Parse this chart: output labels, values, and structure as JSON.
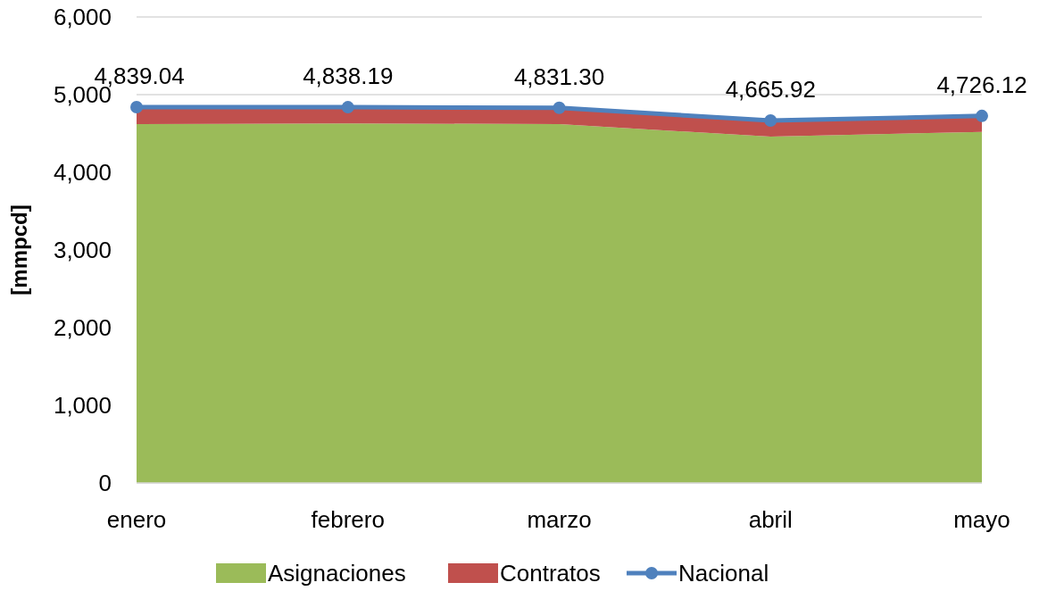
{
  "chart_data": {
    "type": "area",
    "ylabel": "[mmpcd]",
    "categories": [
      "enero",
      "febrero",
      "marzo",
      "abril",
      "mayo"
    ],
    "stacked": true,
    "ylim": [
      0,
      6000
    ],
    "yticks": [
      {
        "value": 0,
        "label": "0"
      },
      {
        "value": 1000,
        "label": "1,000"
      },
      {
        "value": 2000,
        "label": "2,000"
      },
      {
        "value": 3000,
        "label": "3,000"
      },
      {
        "value": 4000,
        "label": "4,000"
      },
      {
        "value": 5000,
        "label": "5,000"
      },
      {
        "value": 6000,
        "label": "6,000"
      }
    ],
    "grid": "y",
    "legend": "bottom",
    "series": [
      {
        "name": "Asignaciones",
        "color": "#9bbb59",
        "values": [
          4620,
          4630,
          4620,
          4460,
          4520
        ]
      },
      {
        "name": "Contratos",
        "color": "#c0504d",
        "values": [
          220,
          210,
          210,
          210,
          210
        ]
      },
      {
        "name": "Nacional",
        "type": "line",
        "color": "#4f81bd",
        "marker": "circle",
        "values": [
          4839.04,
          4838.19,
          4831.3,
          4665.92,
          4726.12
        ],
        "value_labels": [
          "4,839.04",
          "4,838.19",
          "4,831.30",
          "4,665.92",
          "4,726.12"
        ]
      }
    ]
  }
}
